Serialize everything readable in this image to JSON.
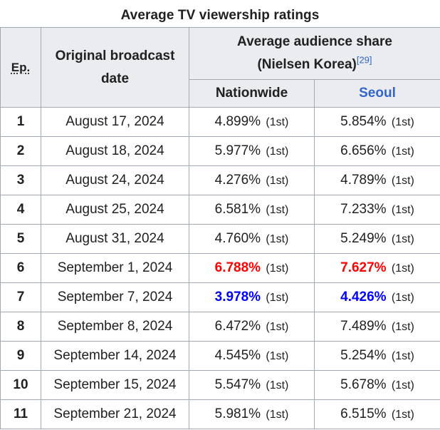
{
  "caption": "Average TV viewership ratings",
  "headers": {
    "ep": "Ep.",
    "date_line1": "Original broadcast",
    "date_line2": "date",
    "share_line1": "Average audience share",
    "share_line2": "(Nielsen Korea)",
    "share_ref": "[29]",
    "nationwide": "Nationwide",
    "seoul": "Seoul"
  },
  "colors": {
    "highest": "#ff0000",
    "lowest": "#0000ff",
    "link": "#3366cc"
  },
  "rows": [
    {
      "ep": "1",
      "date": "August 17, 2024",
      "nationwide": "4.899%",
      "nationwide_rank": "(1st)",
      "seoul": "5.854%",
      "seoul_rank": "(1st)"
    },
    {
      "ep": "2",
      "date": "August 18, 2024",
      "nationwide": "5.977%",
      "nationwide_rank": "(1st)",
      "seoul": "6.656%",
      "seoul_rank": "(1st)"
    },
    {
      "ep": "3",
      "date": "August 24, 2024",
      "nationwide": "4.276%",
      "nationwide_rank": "(1st)",
      "seoul": "4.789%",
      "seoul_rank": "(1st)"
    },
    {
      "ep": "4",
      "date": "August 25, 2024",
      "nationwide": "6.581%",
      "nationwide_rank": "(1st)",
      "seoul": "7.233%",
      "seoul_rank": "(1st)"
    },
    {
      "ep": "5",
      "date": "August 31, 2024",
      "nationwide": "4.760%",
      "nationwide_rank": "(1st)",
      "seoul": "5.249%",
      "seoul_rank": "(1st)"
    },
    {
      "ep": "6",
      "date": "September 1, 2024",
      "nationwide": "6.788%",
      "nationwide_rank": "(1st)",
      "seoul": "7.627%",
      "seoul_rank": "(1st)"
    },
    {
      "ep": "7",
      "date": "September 7, 2024",
      "nationwide": "3.978%",
      "nationwide_rank": "(1st)",
      "seoul": "4.426%",
      "seoul_rank": "(1st)"
    },
    {
      "ep": "8",
      "date": "September 8, 2024",
      "nationwide": "6.472%",
      "nationwide_rank": "(1st)",
      "seoul": "7.489%",
      "seoul_rank": "(1st)"
    },
    {
      "ep": "9",
      "date": "September 14, 2024",
      "nationwide": "4.545%",
      "nationwide_rank": "(1st)",
      "seoul": "5.254%",
      "seoul_rank": "(1st)"
    },
    {
      "ep": "10",
      "date": "September 15, 2024",
      "nationwide": "5.547%",
      "nationwide_rank": "(1st)",
      "seoul": "5.678%",
      "seoul_rank": "(1st)"
    },
    {
      "ep": "11",
      "date": "September 21, 2024",
      "nationwide": "5.981%",
      "nationwide_rank": "(1st)",
      "seoul": "6.515%",
      "seoul_rank": "(1st)"
    }
  ]
}
